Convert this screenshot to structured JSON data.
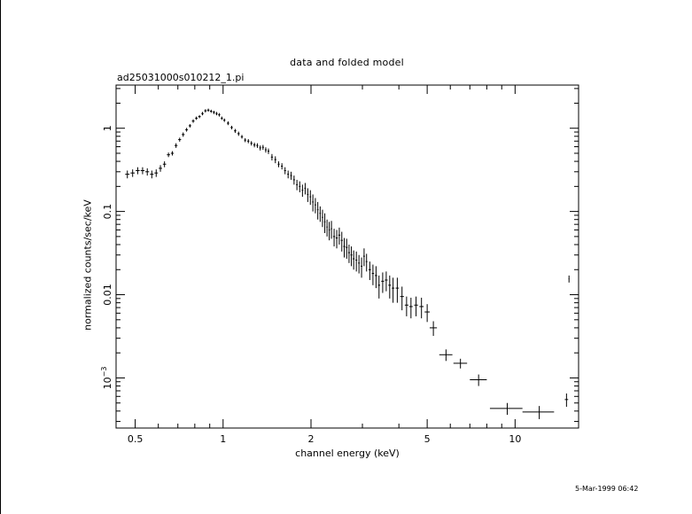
{
  "chart_data": {
    "type": "scatter",
    "title": "data and folded model",
    "subtitle": "ad25031000s010212_1.pi",
    "xlabel": "channel energy (keV)",
    "ylabel": "normalized counts/sec/keV",
    "xscale": "log",
    "yscale": "log",
    "xlim": [
      0.43,
      16.5
    ],
    "ylim": [
      0.00025,
      3.3
    ],
    "x_ticks": [
      {
        "value": 0.5,
        "label": "0.5"
      },
      {
        "value": 1,
        "label": "1"
      },
      {
        "value": 2,
        "label": "2"
      },
      {
        "value": 5,
        "label": "5"
      },
      {
        "value": 10,
        "label": "10"
      }
    ],
    "y_ticks": [
      {
        "value": 1,
        "label": "1"
      },
      {
        "value": 0.1,
        "label": "0.1"
      },
      {
        "value": 0.01,
        "label": "0.01"
      },
      {
        "value": 0.001,
        "label": "10",
        "exp": "−3"
      }
    ],
    "grid": false,
    "timestamp": "5-Mar-1999 06:42",
    "series": [
      {
        "points": [
          [
            0.47,
            0.28,
            0.008,
            0.03
          ],
          [
            0.49,
            0.29,
            0.008,
            0.03
          ],
          [
            0.51,
            0.31,
            0.008,
            0.03
          ],
          [
            0.53,
            0.31,
            0.008,
            0.03
          ],
          [
            0.55,
            0.3,
            0.008,
            0.03
          ],
          [
            0.57,
            0.28,
            0.008,
            0.03
          ],
          [
            0.59,
            0.29,
            0.008,
            0.03
          ],
          [
            0.61,
            0.33,
            0.008,
            0.03
          ],
          [
            0.63,
            0.37,
            0.008,
            0.03
          ],
          [
            0.65,
            0.48,
            0.008,
            0.03
          ],
          [
            0.67,
            0.5,
            0.008,
            0.03
          ],
          [
            0.69,
            0.62,
            0.008,
            0.04
          ],
          [
            0.71,
            0.73,
            0.008,
            0.04
          ],
          [
            0.73,
            0.84,
            0.008,
            0.05
          ],
          [
            0.75,
            0.96,
            0.008,
            0.05
          ],
          [
            0.77,
            1.07,
            0.008,
            0.05
          ],
          [
            0.79,
            1.22,
            0.008,
            0.06
          ],
          [
            0.81,
            1.32,
            0.008,
            0.06
          ],
          [
            0.83,
            1.38,
            0.008,
            0.06
          ],
          [
            0.85,
            1.5,
            0.008,
            0.07
          ],
          [
            0.87,
            1.62,
            0.008,
            0.07
          ],
          [
            0.89,
            1.65,
            0.008,
            0.07
          ],
          [
            0.91,
            1.6,
            0.008,
            0.07
          ],
          [
            0.93,
            1.55,
            0.008,
            0.07
          ],
          [
            0.95,
            1.5,
            0.008,
            0.07
          ],
          [
            0.97,
            1.45,
            0.008,
            0.07
          ],
          [
            0.99,
            1.32,
            0.008,
            0.06
          ],
          [
            1.01,
            1.25,
            0.008,
            0.06
          ],
          [
            1.04,
            1.15,
            0.01,
            0.06
          ],
          [
            1.07,
            1.02,
            0.01,
            0.05
          ],
          [
            1.1,
            0.93,
            0.01,
            0.05
          ],
          [
            1.13,
            0.86,
            0.01,
            0.05
          ],
          [
            1.16,
            0.79,
            0.01,
            0.04
          ],
          [
            1.19,
            0.72,
            0.01,
            0.04
          ],
          [
            1.22,
            0.7,
            0.01,
            0.04
          ],
          [
            1.25,
            0.66,
            0.01,
            0.04
          ],
          [
            1.28,
            0.63,
            0.01,
            0.04
          ],
          [
            1.31,
            0.62,
            0.01,
            0.04
          ],
          [
            1.34,
            0.58,
            0.01,
            0.04
          ],
          [
            1.37,
            0.59,
            0.01,
            0.04
          ],
          [
            1.4,
            0.55,
            0.01,
            0.04
          ],
          [
            1.43,
            0.53,
            0.01,
            0.04
          ],
          [
            1.47,
            0.45,
            0.012,
            0.04
          ],
          [
            1.51,
            0.42,
            0.012,
            0.04
          ],
          [
            1.55,
            0.37,
            0.012,
            0.03
          ],
          [
            1.59,
            0.35,
            0.012,
            0.03
          ],
          [
            1.63,
            0.31,
            0.012,
            0.03
          ],
          [
            1.67,
            0.28,
            0.012,
            0.03
          ],
          [
            1.71,
            0.27,
            0.012,
            0.03
          ],
          [
            1.75,
            0.24,
            0.012,
            0.03
          ],
          [
            1.79,
            0.21,
            0.012,
            0.03
          ],
          [
            1.83,
            0.2,
            0.012,
            0.03
          ],
          [
            1.87,
            0.18,
            0.012,
            0.03
          ],
          [
            1.91,
            0.19,
            0.012,
            0.03
          ],
          [
            1.95,
            0.16,
            0.012,
            0.03
          ],
          [
            1.99,
            0.15,
            0.012,
            0.03
          ],
          [
            2.03,
            0.13,
            0.012,
            0.03
          ],
          [
            2.07,
            0.12,
            0.012,
            0.025
          ],
          [
            2.11,
            0.105,
            0.012,
            0.025
          ],
          [
            2.15,
            0.095,
            0.012,
            0.02
          ],
          [
            2.19,
            0.085,
            0.012,
            0.02
          ],
          [
            2.23,
            0.075,
            0.012,
            0.02
          ],
          [
            2.27,
            0.065,
            0.012,
            0.015
          ],
          [
            2.31,
            0.06,
            0.012,
            0.015
          ],
          [
            2.35,
            0.062,
            0.012,
            0.015
          ],
          [
            2.4,
            0.05,
            0.02,
            0.012
          ],
          [
            2.45,
            0.048,
            0.02,
            0.012
          ],
          [
            2.5,
            0.052,
            0.02,
            0.012
          ],
          [
            2.55,
            0.045,
            0.02,
            0.012
          ],
          [
            2.6,
            0.038,
            0.02,
            0.01
          ],
          [
            2.65,
            0.037,
            0.02,
            0.01
          ],
          [
            2.7,
            0.032,
            0.02,
            0.008
          ],
          [
            2.75,
            0.03,
            0.02,
            0.008
          ],
          [
            2.8,
            0.027,
            0.02,
            0.007
          ],
          [
            2.86,
            0.026,
            0.02,
            0.007
          ],
          [
            2.92,
            0.024,
            0.02,
            0.006
          ],
          [
            2.98,
            0.022,
            0.02,
            0.006
          ],
          [
            3.04,
            0.029,
            0.02,
            0.007
          ],
          [
            3.1,
            0.025,
            0.02,
            0.006
          ],
          [
            3.18,
            0.02,
            0.03,
            0.005
          ],
          [
            3.26,
            0.018,
            0.03,
            0.005
          ],
          [
            3.34,
            0.017,
            0.03,
            0.005
          ],
          [
            3.42,
            0.013,
            0.03,
            0.004
          ],
          [
            3.52,
            0.0145,
            0.04,
            0.004
          ],
          [
            3.62,
            0.015,
            0.04,
            0.004
          ],
          [
            3.72,
            0.013,
            0.04,
            0.004
          ],
          [
            3.82,
            0.012,
            0.04,
            0.004
          ],
          [
            3.95,
            0.012,
            0.05,
            0.004
          ],
          [
            4.1,
            0.0095,
            0.06,
            0.003
          ],
          [
            4.25,
            0.0075,
            0.06,
            0.002
          ],
          [
            4.4,
            0.0072,
            0.06,
            0.002
          ],
          [
            4.58,
            0.0075,
            0.07,
            0.002
          ],
          [
            4.78,
            0.0072,
            0.08,
            0.002
          ],
          [
            5.0,
            0.0062,
            0.1,
            0.0015
          ],
          [
            5.25,
            0.004,
            0.15,
            0.0008
          ],
          [
            5.8,
            0.0019,
            0.3,
            0.0003
          ],
          [
            6.5,
            0.0015,
            0.35,
            0.0002
          ],
          [
            7.5,
            0.00095,
            0.5,
            0.00015
          ],
          [
            9.4,
            0.00043,
            1.2,
            7e-05
          ],
          [
            12.1,
            0.00039,
            1.5,
            7e-05
          ],
          [
            15.0,
            0.00055,
            0.2,
            0.0001
          ],
          [
            15.3,
            0.0155,
            0.05,
            0.0015
          ]
        ]
      }
    ]
  }
}
